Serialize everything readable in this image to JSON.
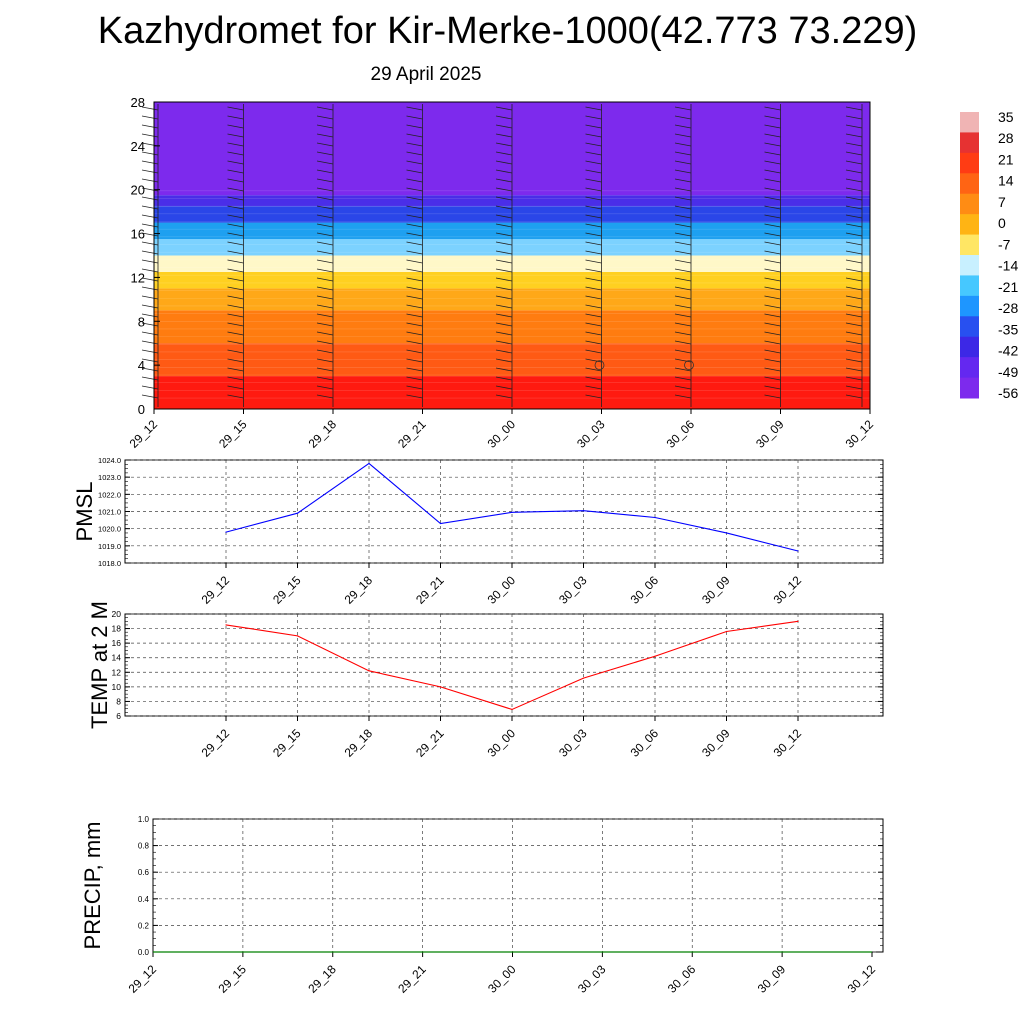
{
  "page": {
    "title": "Kazhydromet for Kir-Merke-1000(42.773 73.229)",
    "subtitle": "29 April 2025"
  },
  "chart_data": [
    {
      "type": "heatmap",
      "description_keys": "time-height cross-section of temperature with wind barbs",
      "x_labels": [
        "29_12",
        "29_15",
        "29_18",
        "29_21",
        "30_00",
        "30_03",
        "30_06",
        "30_09",
        "30_12"
      ],
      "y_ticks": [
        0,
        4,
        8,
        12,
        16,
        20,
        24,
        28
      ],
      "ylim": [
        0,
        28
      ],
      "colorbar": {
        "labels": [
          "35",
          "28",
          "21",
          "14",
          "7",
          "0",
          "-7",
          "-14",
          "-21",
          "-28",
          "-35",
          "-42",
          "-49",
          "-56"
        ],
        "colors": [
          "#f0b4b4",
          "#e63232",
          "#ff3c14",
          "#ff6414",
          "#ff8c14",
          "#ffb414",
          "#ffe664",
          "#c8f0ff",
          "#46c8ff",
          "#1e96ff",
          "#2850f0",
          "#3c28e6",
          "#6428f0",
          "#7d2aed"
        ]
      },
      "layers": [
        {
          "from": 0,
          "to": 3,
          "color": "#ff1a10"
        },
        {
          "from": 3,
          "to": 6,
          "color": "#ff5a14"
        },
        {
          "from": 6,
          "to": 9,
          "color": "#ff7c10"
        },
        {
          "from": 9,
          "to": 11,
          "color": "#ffa818"
        },
        {
          "from": 11,
          "to": 12.5,
          "color": "#ffd020"
        },
        {
          "from": 12.5,
          "to": 14,
          "color": "#fff8c8"
        },
        {
          "from": 14,
          "to": 15.5,
          "color": "#7cd2ff"
        },
        {
          "from": 15.5,
          "to": 17,
          "color": "#1ea0f0"
        },
        {
          "from": 17,
          "to": 18.5,
          "color": "#2a46e8"
        },
        {
          "from": 18.5,
          "to": 19.5,
          "color": "#4a2ee8"
        },
        {
          "from": 19.5,
          "to": 28,
          "color": "#7d2aed"
        }
      ]
    },
    {
      "type": "line",
      "ylabel": "PMSL",
      "x": [
        "29_12",
        "29_15",
        "29_18",
        "29_21",
        "30_00",
        "30_03",
        "30_06",
        "30_09",
        "30_12"
      ],
      "values": [
        1019.8,
        1020.9,
        1023.8,
        1020.3,
        1020.95,
        1021.05,
        1020.65,
        1019.75,
        1018.7
      ],
      "y_ticks": [
        "1018.0",
        "1019.0",
        "1020.0",
        "1021.0",
        "1022.0",
        "1023.0",
        "1024.0"
      ],
      "ylim": [
        1018,
        1024
      ],
      "color": "#0000ff"
    },
    {
      "type": "line",
      "ylabel": "TEMP at 2 M",
      "x": [
        "29_12",
        "29_15",
        "29_18",
        "29_21",
        "30_00",
        "30_03",
        "30_06",
        "30_09",
        "30_12"
      ],
      "values": [
        18.5,
        17,
        12.2,
        10,
        6.9,
        11.2,
        14.2,
        17.6,
        19
      ],
      "y_ticks": [
        "6",
        "8",
        "10",
        "12",
        "14",
        "16",
        "18",
        "20"
      ],
      "ylim": [
        6,
        20
      ],
      "color": "#ff0000"
    },
    {
      "type": "line",
      "ylabel": "PRECIP, mm",
      "x": [
        "29_12",
        "29_15",
        "29_18",
        "29_21",
        "30_00",
        "30_03",
        "30_06",
        "30_09",
        "30_12"
      ],
      "values": [
        0,
        0,
        0,
        0,
        0,
        0,
        0,
        0,
        0
      ],
      "y_ticks": [
        "0.0",
        "0.2",
        "0.4",
        "0.6",
        "0.8",
        "1.0"
      ],
      "ylim": [
        0,
        1
      ],
      "color": "#008000"
    }
  ]
}
